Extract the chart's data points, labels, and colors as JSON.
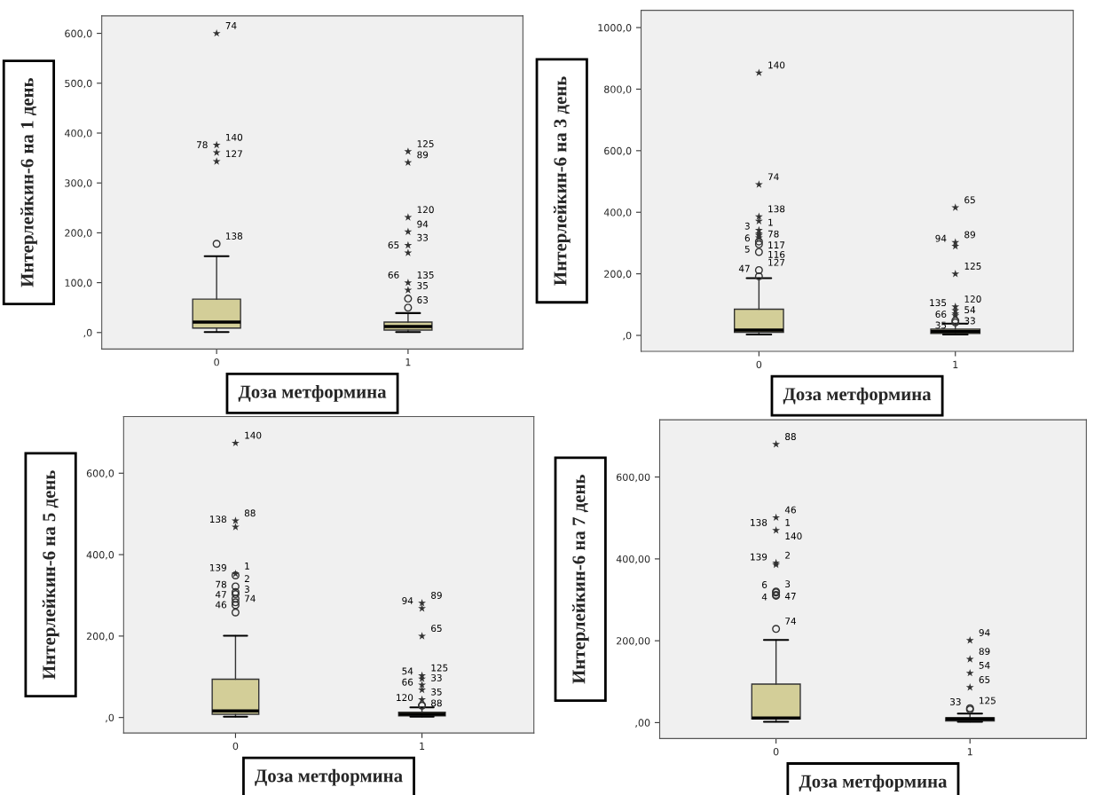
{
  "chart_data": [
    {
      "type": "box",
      "ylabel": "Интерлейкин-6 на 1 день",
      "xlabel": "Доза метформина",
      "categories": [
        "0",
        "1"
      ],
      "color": "#d3ce98",
      "ylim": [
        -33,
        635
      ],
      "yticks": [
        {
          "value": 0,
          "label": ",0"
        },
        {
          "value": 100,
          "label": "100,0"
        },
        {
          "value": 200,
          "label": "200,0"
        },
        {
          "value": 300,
          "label": "300,0"
        },
        {
          "value": 400,
          "label": "400,0"
        },
        {
          "value": 500,
          "label": "500,0"
        },
        {
          "value": 600,
          "label": "600,0"
        }
      ],
      "boxes": [
        {
          "low": 1,
          "q1": 9,
          "median": 21,
          "q3": 67,
          "high": 153
        },
        {
          "low": 1,
          "q1": 5,
          "median": 12,
          "q3": 21,
          "high": 39
        }
      ],
      "series": [
        {
          "type": "scatter",
          "marker": "circle",
          "color": "#333333",
          "x": [
            "0",
            "1",
            "1"
          ],
          "values": [
            178,
            50,
            68
          ]
        },
        {
          "type": "scatter",
          "marker": "star",
          "color": "#333333",
          "x": [
            "0",
            "0",
            "0",
            "0",
            "1",
            "1",
            "1",
            "1",
            "1",
            "1",
            "1",
            "1"
          ],
          "values": [
            343,
            361,
            376,
            600,
            85,
            100,
            160,
            175,
            202,
            231,
            341,
            363
          ]
        }
      ],
      "annotations": [
        {
          "text": "74",
          "x": "0",
          "y": 600
        },
        {
          "text": "140",
          "x": "0",
          "y": 376
        },
        {
          "text": "78",
          "x": "0",
          "y": 361
        },
        {
          "text": "127",
          "x": "0",
          "y": 343
        },
        {
          "text": "138",
          "x": "0",
          "y": 178
        },
        {
          "text": "125",
          "x": "1",
          "y": 363
        },
        {
          "text": "89",
          "x": "1",
          "y": 341
        },
        {
          "text": "120",
          "x": "1",
          "y": 231
        },
        {
          "text": "94",
          "x": "1",
          "y": 202
        },
        {
          "text": "33",
          "x": "1",
          "y": 175
        },
        {
          "text": "65",
          "x": "1",
          "y": 160
        },
        {
          "text": "135",
          "x": "1",
          "y": 100
        },
        {
          "text": "66",
          "x": "1",
          "y": 100
        },
        {
          "text": "35",
          "x": "1",
          "y": 85
        },
        {
          "text": "63",
          "x": "1",
          "y": 50
        }
      ]
    },
    {
      "type": "box",
      "ylabel": "Интерлейкин-6 на 3 день",
      "xlabel": "Доза метформина",
      "categories": [
        "0",
        "1"
      ],
      "color": "#d3ce98",
      "ylim": [
        -52,
        1056
      ],
      "yticks": [
        {
          "value": 0,
          "label": ",0"
        },
        {
          "value": 200,
          "label": "200,0"
        },
        {
          "value": 400,
          "label": "400,0"
        },
        {
          "value": 600,
          "label": "600,0"
        },
        {
          "value": 800,
          "label": "800,0"
        },
        {
          "value": 1000,
          "label": "1000,0"
        }
      ],
      "boxes": [
        {
          "low": 3,
          "q1": 10,
          "median": 17,
          "q3": 85,
          "high": 186
        },
        {
          "low": 3,
          "q1": 6,
          "median": 12,
          "q3": 20,
          "high": 38
        }
      ],
      "series": [
        {
          "type": "scatter",
          "marker": "circle",
          "color": "#333333",
          "x": [
            "0",
            "0",
            "0",
            "0",
            "0",
            "1",
            "1"
          ],
          "values": [
            192,
            212,
            271,
            296,
            305,
            42,
            48
          ]
        },
        {
          "type": "scatter",
          "marker": "star",
          "color": "#333333",
          "x": [
            "0",
            "0",
            "0",
            "0",
            "0",
            "0",
            "0",
            "0",
            "1",
            "1",
            "1",
            "1",
            "1",
            "1",
            "1",
            "1"
          ],
          "values": [
            317,
            325,
            330,
            342,
            371,
            386,
            490,
            853,
            64,
            70,
            81,
            93,
            200,
            290,
            302,
            415
          ]
        }
      ],
      "annotations": [
        {
          "text": "140",
          "x": "0",
          "y": 853
        },
        {
          "text": "74",
          "x": "0",
          "y": 490
        },
        {
          "text": "138",
          "x": "0",
          "y": 386
        },
        {
          "text": "1",
          "x": "0",
          "y": 342
        },
        {
          "text": "3",
          "x": "0",
          "y": 330
        },
        {
          "text": "78",
          "x": "0",
          "y": 325
        },
        {
          "text": "6",
          "x": "0",
          "y": 317
        },
        {
          "text": "117",
          "x": "0",
          "y": 305
        },
        {
          "text": "5",
          "x": "0",
          "y": 296
        },
        {
          "text": "116",
          "x": "0",
          "y": 271
        },
        {
          "text": "127",
          "x": "0",
          "y": 212
        },
        {
          "text": "47",
          "x": "0",
          "y": 192
        },
        {
          "text": "65",
          "x": "1",
          "y": 415
        },
        {
          "text": "89",
          "x": "1",
          "y": 302
        },
        {
          "text": "94",
          "x": "1",
          "y": 290
        },
        {
          "text": "125",
          "x": "1",
          "y": 200
        },
        {
          "text": "120",
          "x": "1",
          "y": 93
        },
        {
          "text": "135",
          "x": "1",
          "y": 81
        },
        {
          "text": "54",
          "x": "1",
          "y": 70
        },
        {
          "text": "66",
          "x": "1",
          "y": 64
        },
        {
          "text": "33",
          "x": "1",
          "y": 48
        },
        {
          "text": "35",
          "x": "1",
          "y": 42
        }
      ]
    },
    {
      "type": "box",
      "ylabel": "Интерлейкин-6 на 5 день",
      "xlabel": "Доза метформина",
      "categories": [
        "0",
        "1"
      ],
      "color": "#d3ce98",
      "ylim": [
        -38,
        739
      ],
      "yticks": [
        {
          "value": 0,
          "label": ",0"
        },
        {
          "value": 200,
          "label": "200,0"
        },
        {
          "value": 400,
          "label": "400,0"
        },
        {
          "value": 600,
          "label": "600,0"
        }
      ],
      "boxes": [
        {
          "low": 2,
          "q1": 8,
          "median": 16,
          "q3": 94,
          "high": 201
        },
        {
          "low": 2,
          "q1": 4,
          "median": 8,
          "q3": 13,
          "high": 25
        }
      ],
      "series": [
        {
          "type": "scatter",
          "marker": "circle",
          "color": "#333333",
          "x": [
            "0",
            "0",
            "0",
            "0",
            "0",
            "0",
            "0",
            "0",
            "1",
            "1"
          ],
          "values": [
            258,
            276,
            283,
            292,
            303,
            308,
            322,
            349,
            29,
            30
          ]
        },
        {
          "type": "scatter",
          "marker": "star",
          "color": "#333333",
          "x": [
            "0",
            "0",
            "0",
            "0",
            "1",
            "1",
            "1",
            "1",
            "1",
            "1",
            "1",
            "1"
          ],
          "values": [
            353,
            468,
            483,
            674,
            44,
            68,
            80,
            95,
            103,
            200,
            268,
            281
          ]
        }
      ],
      "annotations": [
        {
          "text": "140",
          "x": "0",
          "y": 674
        },
        {
          "text": "88",
          "x": "0",
          "y": 483
        },
        {
          "text": "138",
          "x": "0",
          "y": 468
        },
        {
          "text": "1",
          "x": "0",
          "y": 353
        },
        {
          "text": "139",
          "x": "0",
          "y": 349
        },
        {
          "text": "2",
          "x": "0",
          "y": 322
        },
        {
          "text": "78",
          "x": "0",
          "y": 308
        },
        {
          "text": "3",
          "x": "0",
          "y": 303
        },
        {
          "text": "47",
          "x": "0",
          "y": 283
        },
        {
          "text": "74",
          "x": "0",
          "y": 276
        },
        {
          "text": "46",
          "x": "0",
          "y": 258
        },
        {
          "text": "89",
          "x": "1",
          "y": 281
        },
        {
          "text": "94",
          "x": "1",
          "y": 268
        },
        {
          "text": "65",
          "x": "1",
          "y": 200
        },
        {
          "text": "125",
          "x": "1",
          "y": 103
        },
        {
          "text": "54",
          "x": "1",
          "y": 95
        },
        {
          "text": "33",
          "x": "1",
          "y": 80
        },
        {
          "text": "66",
          "x": "1",
          "y": 68
        },
        {
          "text": "35",
          "x": "1",
          "y": 44
        },
        {
          "text": "120",
          "x": "1",
          "y": 30
        },
        {
          "text": "88",
          "x": "1",
          "y": 29
        }
      ]
    },
    {
      "type": "box",
      "ylabel": "Интерлейкин-6 на 7 день",
      "xlabel": "Доза метформина",
      "categories": [
        "0",
        "1"
      ],
      "color": "#d3ce98",
      "ylim": [
        -39,
        740
      ],
      "yticks": [
        {
          "value": 0,
          "label": ",00"
        },
        {
          "value": 200,
          "label": "200,00"
        },
        {
          "value": 400,
          "label": "400,00"
        },
        {
          "value": 600,
          "label": "600,00"
        }
      ],
      "boxes": [
        {
          "low": 2,
          "q1": 9,
          "median": 11,
          "q3": 94,
          "high": 202
        },
        {
          "low": 2,
          "q1": 4,
          "median": 9,
          "q3": 12,
          "high": 22
        }
      ],
      "series": [
        {
          "type": "scatter",
          "marker": "circle",
          "color": "#333333",
          "x": [
            "0",
            "0",
            "0",
            "0",
            "0",
            "1",
            "1"
          ],
          "values": [
            229,
            310,
            312,
            318,
            320,
            32,
            35
          ]
        },
        {
          "type": "scatter",
          "marker": "star",
          "color": "#333333",
          "x": [
            "0",
            "0",
            "0",
            "0",
            "0",
            "1",
            "1",
            "1",
            "1"
          ],
          "values": [
            386,
            390,
            470,
            501,
            680,
            86,
            121,
            155,
            201
          ]
        }
      ],
      "annotations": [
        {
          "text": "88",
          "x": "0",
          "y": 680
        },
        {
          "text": "46",
          "x": "0",
          "y": 501
        },
        {
          "text": "1",
          "x": "0",
          "y": 470
        },
        {
          "text": "138",
          "x": "0",
          "y": 470
        },
        {
          "text": "140",
          "x": "0",
          "y": 470
        },
        {
          "text": "2",
          "x": "0",
          "y": 390
        },
        {
          "text": "139",
          "x": "0",
          "y": 386
        },
        {
          "text": "3",
          "x": "0",
          "y": 320
        },
        {
          "text": "6",
          "x": "0",
          "y": 318
        },
        {
          "text": "47",
          "x": "0",
          "y": 312
        },
        {
          "text": "4",
          "x": "0",
          "y": 310
        },
        {
          "text": "74",
          "x": "0",
          "y": 229
        },
        {
          "text": "94",
          "x": "1",
          "y": 201
        },
        {
          "text": "89",
          "x": "1",
          "y": 155
        },
        {
          "text": "54",
          "x": "1",
          "y": 121
        },
        {
          "text": "65",
          "x": "1",
          "y": 86
        },
        {
          "text": "125",
          "x": "1",
          "y": 35
        },
        {
          "text": "33",
          "x": "1",
          "y": 32
        }
      ]
    }
  ]
}
